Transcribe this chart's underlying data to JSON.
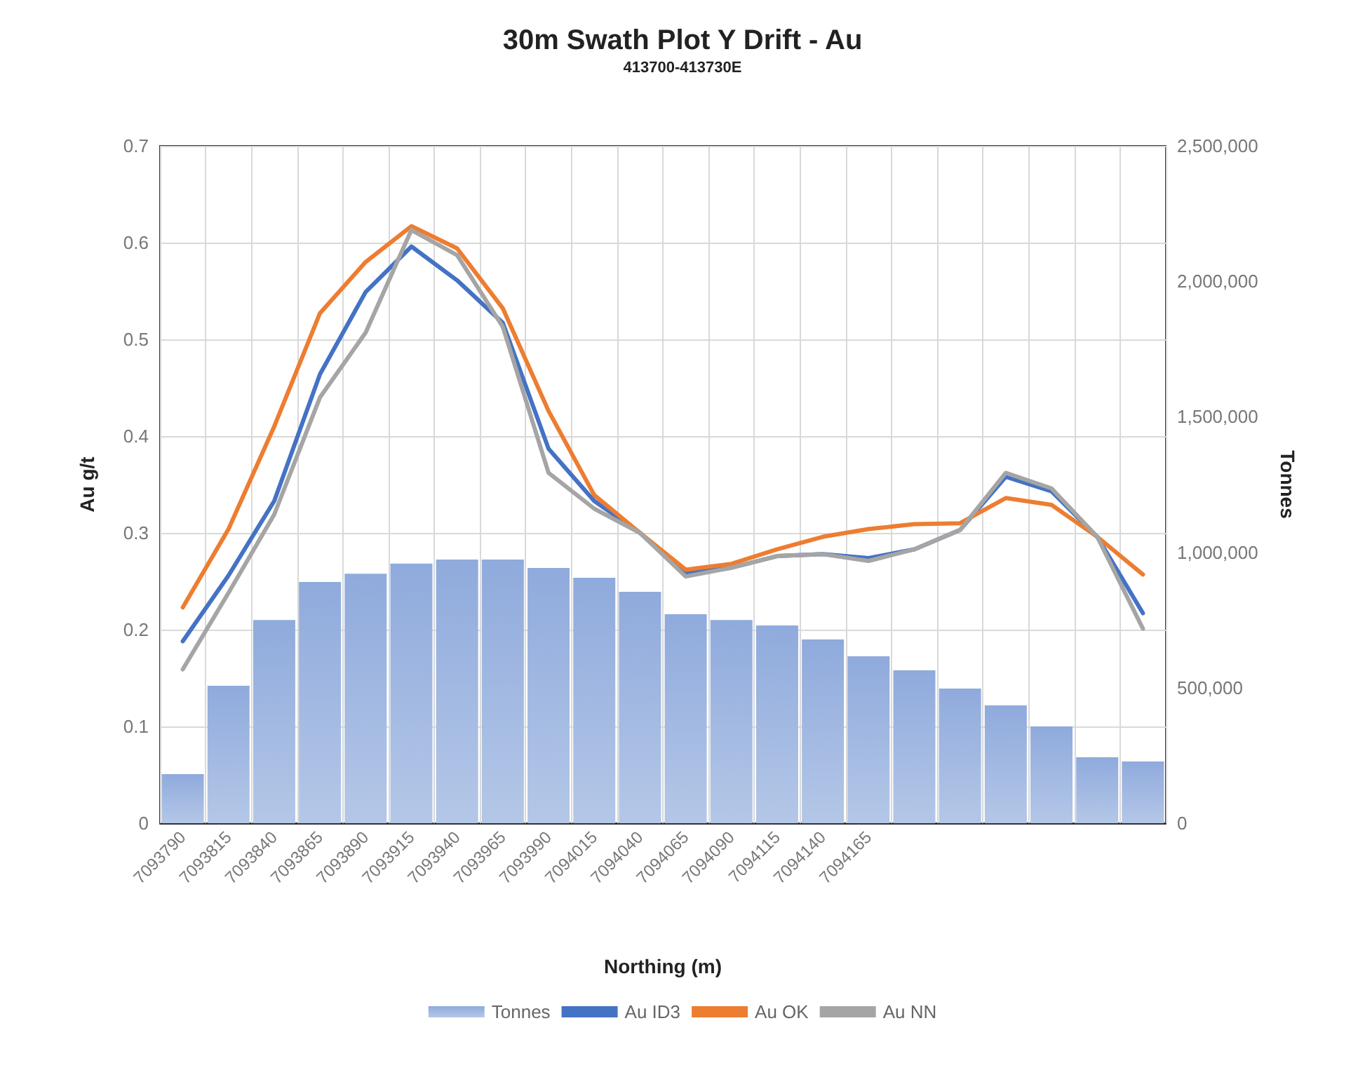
{
  "chart_data": {
    "type": "bar",
    "title": "30m Swath Plot Y Drift - Au",
    "subtitle": "413700-413730E",
    "xlabel": "Northing (m)",
    "ylabel": "Au g/t",
    "y2label": "Tonnes",
    "categories": [
      "7093790",
      "7093815",
      "7093840",
      "7093865",
      "7093890",
      "7093915",
      "7093940",
      "7093965",
      "7093990",
      "7094015",
      "7094040",
      "7094065",
      "7094090",
      "7094115",
      "7094140",
      "7094165",
      null,
      null,
      null,
      null,
      null,
      null
    ],
    "series": [
      {
        "name": "Tonnes",
        "axis": "y2",
        "color": "#8faadc",
        "values": [
          181000,
          507000,
          750000,
          890000,
          921000,
          958000,
          973000,
          973000,
          942000,
          906000,
          854000,
          771000,
          750000,
          730000,
          678000,
          616000,
          564000,
          497000,
          435000,
          357000,
          243000,
          228000
        ]
      },
      {
        "name": "Au ID3",
        "type": "line",
        "color": "#4472c4",
        "values": [
          0.188,
          0.256,
          0.333,
          0.464,
          0.549,
          0.596,
          0.561,
          0.517,
          0.387,
          0.333,
          0.3,
          0.258,
          0.264,
          0.276,
          0.278,
          0.274,
          0.283,
          0.303,
          0.358,
          0.343,
          0.296,
          0.217
        ]
      },
      {
        "name": "Au OK",
        "type": "line",
        "color": "#ed7d31",
        "values": [
          0.223,
          0.304,
          0.41,
          0.527,
          0.58,
          0.617,
          0.594,
          0.532,
          0.426,
          0.339,
          0.3,
          0.262,
          0.268,
          0.283,
          0.296,
          0.304,
          0.309,
          0.31,
          0.336,
          0.329,
          0.296,
          0.257
        ]
      },
      {
        "name": "Au NN",
        "type": "line",
        "color": "#a5a5a5",
        "values": [
          0.159,
          0.238,
          0.319,
          0.44,
          0.507,
          0.613,
          0.587,
          0.513,
          0.362,
          0.325,
          0.3,
          0.255,
          0.264,
          0.276,
          0.278,
          0.271,
          0.283,
          0.303,
          0.362,
          0.346,
          0.296,
          0.201
        ]
      }
    ],
    "ylim": [
      0,
      0.7
    ],
    "yticks": [
      0,
      0.1,
      0.2,
      0.3,
      0.4,
      0.5,
      0.6,
      0.7
    ],
    "y2lim": [
      0,
      2500000
    ],
    "y2ticks": [
      0,
      {
        "value": 500000,
        "label": "500,000"
      },
      {
        "value": 1000000,
        "label": "1,000,000"
      },
      {
        "value": 1500000,
        "label": "1,500,000"
      },
      {
        "value": 2000000,
        "label": "2,000,000"
      },
      {
        "value": 2500000,
        "label": "2,500,000"
      }
    ],
    "grid": true,
    "legend": "bottom",
    "marker": "none",
    "line_style": "solid"
  }
}
